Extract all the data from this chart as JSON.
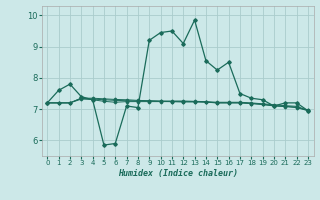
{
  "xlabel": "Humidex (Indice chaleur)",
  "background_color": "#cce8e8",
  "grid_color": "#aacccc",
  "line_color": "#1a6b5a",
  "xlim": [
    -0.5,
    23.5
  ],
  "ylim": [
    5.5,
    10.3
  ],
  "yticks": [
    6,
    7,
    8,
    9,
    10
  ],
  "xticks": [
    0,
    1,
    2,
    3,
    4,
    5,
    6,
    7,
    8,
    9,
    10,
    11,
    12,
    13,
    14,
    15,
    16,
    17,
    18,
    19,
    20,
    21,
    22,
    23
  ],
  "series1_x": [
    0,
    1,
    2,
    3,
    4,
    5,
    6,
    7,
    8,
    9,
    10,
    11,
    12,
    13,
    14,
    15,
    16,
    17,
    18,
    19,
    20,
    21,
    22,
    23
  ],
  "series1_y": [
    7.2,
    7.6,
    7.8,
    7.4,
    7.3,
    5.85,
    5.9,
    7.1,
    7.05,
    9.2,
    9.45,
    9.5,
    9.1,
    9.85,
    8.55,
    8.25,
    8.5,
    7.5,
    7.35,
    7.3,
    7.1,
    7.2,
    7.2,
    6.95
  ],
  "series2_x": [
    0,
    1,
    2,
    3,
    4,
    5,
    6,
    7,
    8,
    9,
    10,
    11,
    12,
    13,
    14,
    15,
    16,
    17,
    18,
    19,
    20,
    21,
    22,
    23
  ],
  "series2_y": [
    7.2,
    7.2,
    7.2,
    7.35,
    7.3,
    7.25,
    7.22,
    7.24,
    7.24,
    7.24,
    7.24,
    7.24,
    7.23,
    7.23,
    7.22,
    7.2,
    7.2,
    7.2,
    7.18,
    7.15,
    7.1,
    7.08,
    7.05,
    6.95
  ],
  "series3_x": [
    0,
    1,
    2,
    3,
    4,
    5,
    6,
    7,
    8,
    9,
    10,
    11,
    12,
    13,
    14,
    15,
    16,
    17,
    18,
    19,
    20,
    21,
    22,
    23
  ],
  "series3_y": [
    7.2,
    7.2,
    7.2,
    7.35,
    7.35,
    7.33,
    7.31,
    7.3,
    7.28,
    7.27,
    7.26,
    7.26,
    7.26,
    7.25,
    7.24,
    7.22,
    7.22,
    7.22,
    7.2,
    7.17,
    7.14,
    7.11,
    7.09,
    6.96
  ],
  "series4_x": [
    0,
    1,
    2,
    3,
    4,
    5,
    6,
    7,
    8,
    9,
    10,
    11,
    12,
    13,
    14,
    15,
    16,
    17,
    18,
    19,
    20,
    21,
    22,
    23
  ],
  "series4_y": [
    7.2,
    7.2,
    7.2,
    7.32,
    7.32,
    7.3,
    7.28,
    7.27,
    7.26,
    7.26,
    7.25,
    7.24,
    7.24,
    7.24,
    7.23,
    7.2,
    7.2,
    7.2,
    7.18,
    7.15,
    7.11,
    7.09,
    7.06,
    6.96
  ]
}
